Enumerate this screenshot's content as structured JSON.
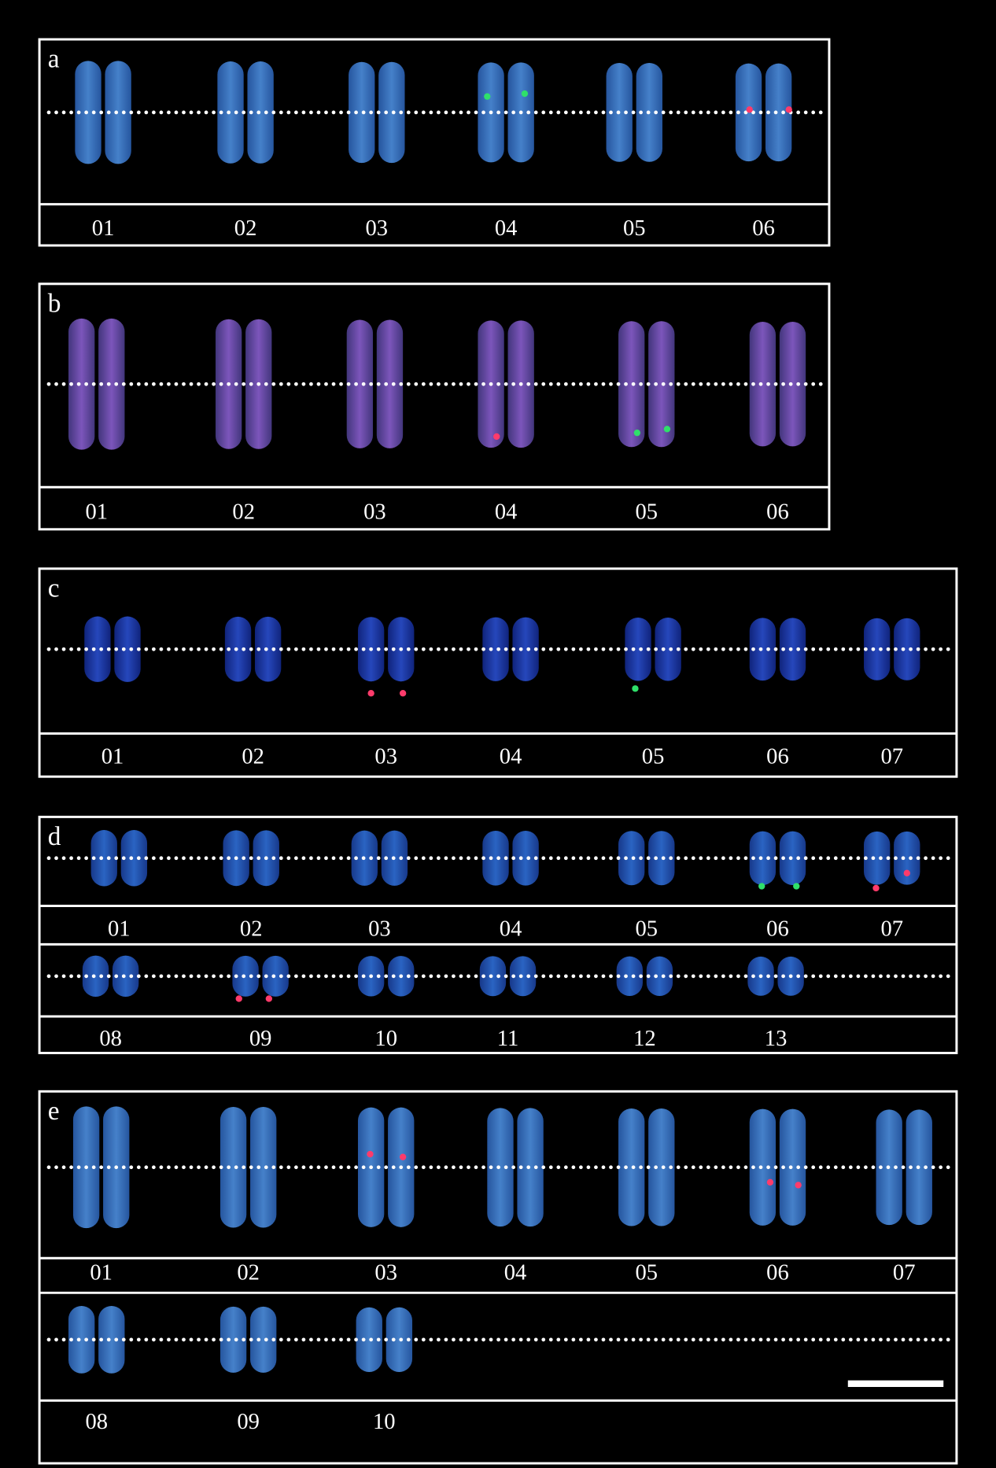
{
  "panels": [
    {
      "letter": "a",
      "rows": [
        [
          "01",
          "02",
          "03",
          "04",
          "05",
          "06"
        ]
      ]
    },
    {
      "letter": "b",
      "rows": [
        [
          "01",
          "02",
          "03",
          "04",
          "05",
          "06"
        ]
      ]
    },
    {
      "letter": "c",
      "rows": [
        [
          "01",
          "02",
          "03",
          "04",
          "05",
          "06",
          "07"
        ]
      ]
    },
    {
      "letter": "d",
      "rows": [
        [
          "01",
          "02",
          "03",
          "04",
          "05",
          "06",
          "07"
        ],
        [
          "08",
          "09",
          "10",
          "11",
          "12",
          "13"
        ]
      ]
    },
    {
      "letter": "e",
      "rows": [
        [
          "01",
          "02",
          "03",
          "04",
          "05",
          "06",
          "07"
        ],
        [
          "08",
          "09",
          "10"
        ]
      ]
    }
  ]
}
